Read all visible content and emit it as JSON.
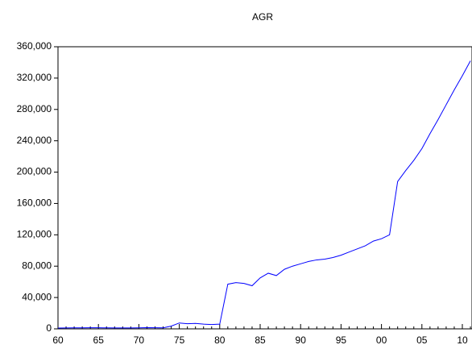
{
  "chart_data": {
    "type": "line",
    "title": "AGR",
    "categories": [
      "60",
      null,
      null,
      null,
      null,
      "65",
      null,
      null,
      null,
      null,
      "70",
      null,
      null,
      null,
      null,
      "75",
      null,
      null,
      null,
      null,
      "80",
      null,
      null,
      null,
      null,
      "85",
      null,
      null,
      null,
      null,
      "90",
      null,
      null,
      null,
      null,
      "95",
      null,
      null,
      null,
      null,
      "00",
      null,
      null,
      null,
      null,
      "05",
      null,
      null,
      null,
      null,
      "10",
      null
    ],
    "values": [
      1000,
      1200,
      1300,
      1300,
      1400,
      1400,
      1300,
      1200,
      1100,
      1200,
      1300,
      1500,
      1400,
      1300,
      3500,
      7500,
      6500,
      7000,
      6000,
      5500,
      6000,
      57000,
      59000,
      58000,
      55000,
      65000,
      71000,
      68000,
      76000,
      80000,
      83000,
      86000,
      88000,
      89000,
      91000,
      94000,
      98000,
      102000,
      106000,
      112000,
      115000,
      120000,
      188000,
      202000,
      215000,
      230000,
      249000,
      267000,
      286000,
      305000,
      323000,
      342000
    ],
    "color": "#0000ff",
    "ylim": [
      0,
      360000
    ],
    "yticks": [
      0,
      {
        "value": 40000,
        "label": "40,000"
      },
      {
        "value": 80000,
        "label": "80,000"
      },
      {
        "value": 120000,
        "label": "120,000"
      },
      {
        "value": 160000,
        "label": "160,000"
      },
      {
        "value": 200000,
        "label": "200,000"
      },
      {
        "value": 240000,
        "label": "240,000"
      },
      {
        "value": 280000,
        "label": "280,000"
      },
      {
        "value": 320000,
        "label": "320,000"
      },
      {
        "value": 360000,
        "label": "360,000"
      }
    ]
  }
}
